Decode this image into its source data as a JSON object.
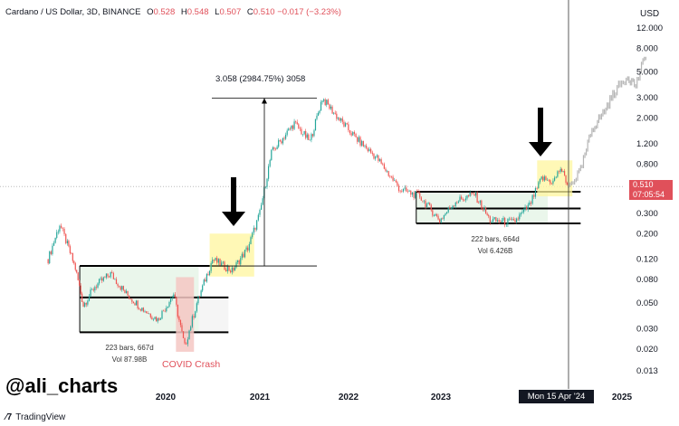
{
  "header": {
    "symbol": "Cardano / US Dollar, 3D, BINANCE",
    "open_label": "O",
    "open": "0.528",
    "high_label": "H",
    "high": "0.548",
    "low_label": "L",
    "low": "0.507",
    "close_label": "C",
    "close": "0.510",
    "change": "−0.017 (−3.23%)"
  },
  "currency": "USD",
  "watermark": "@ali_charts",
  "brand": "TradingView",
  "crosshair_date": "Mon 15 Apr '24",
  "last_price": {
    "value": "0.510",
    "countdown": "07:05:54"
  },
  "annotations": {
    "measure": "3.058 (2984.75%) 3058",
    "box1_bars": "223 bars, 667d",
    "box1_vol": "Vol 87.98B",
    "box2_bars": "222 bars, 664d",
    "box2_vol": "Vol 6.426B",
    "covid": "COVID Crash"
  },
  "colors": {
    "up": "#26a69a",
    "down": "#ef5350",
    "range_fill": "#e8f5e9",
    "highlight": "#fff59d",
    "covid_fill": "#f4c7c3",
    "projection": "#b5b5b5"
  },
  "chart_data": {
    "type": "candlestick",
    "y_scale": "log",
    "y_ticks": [
      12.0,
      8.0,
      5.0,
      3.0,
      2.0,
      1.2,
      0.8,
      0.5,
      0.3,
      0.2,
      0.12,
      0.08,
      0.05,
      0.03,
      0.02,
      0.013
    ],
    "y_tick_labels": [
      "12.000",
      "8.000",
      "5.000",
      "3.000",
      "2.000",
      "1.200",
      "0.800",
      "0.500",
      "0.300",
      "0.200",
      "0.120",
      "0.080",
      "0.050",
      "0.030",
      "0.020",
      "0.013"
    ],
    "x_ticks": [
      "2020",
      "2021",
      "2022",
      "2023",
      "2025"
    ],
    "price_path": [
      {
        "date": "2018-10-01",
        "close": 0.12
      },
      {
        "date": "2018-11-15",
        "close": 0.24
      },
      {
        "date": "2018-12-15",
        "close": 0.16
      },
      {
        "date": "2019-01-15",
        "close": 0.1
      },
      {
        "date": "2019-02-15",
        "close": 0.048
      },
      {
        "date": "2019-04-01",
        "close": 0.07
      },
      {
        "date": "2019-06-01",
        "close": 0.09
      },
      {
        "date": "2019-08-01",
        "close": 0.06
      },
      {
        "date": "2019-10-01",
        "close": 0.045
      },
      {
        "date": "2019-12-01",
        "close": 0.036
      },
      {
        "date": "2020-02-01",
        "close": 0.06
      },
      {
        "date": "2020-03-15",
        "close": 0.021
      },
      {
        "date": "2020-05-01",
        "close": 0.05
      },
      {
        "date": "2020-07-01",
        "close": 0.12
      },
      {
        "date": "2020-09-15",
        "close": 0.095
      },
      {
        "date": "2020-11-15",
        "close": 0.15
      },
      {
        "date": "2021-01-01",
        "close": 0.3
      },
      {
        "date": "2021-02-15",
        "close": 1.0
      },
      {
        "date": "2021-05-15",
        "close": 1.8
      },
      {
        "date": "2021-07-15",
        "close": 1.25
      },
      {
        "date": "2021-09-01",
        "close": 2.97
      },
      {
        "date": "2021-11-01",
        "close": 2.0
      },
      {
        "date": "2022-01-15",
        "close": 1.3
      },
      {
        "date": "2022-04-01",
        "close": 0.9
      },
      {
        "date": "2022-07-01",
        "close": 0.48
      },
      {
        "date": "2022-09-15",
        "close": 0.42
      },
      {
        "date": "2022-12-01",
        "close": 0.26
      },
      {
        "date": "2023-02-01",
        "close": 0.38
      },
      {
        "date": "2023-04-15",
        "close": 0.44
      },
      {
        "date": "2023-06-15",
        "close": 0.26
      },
      {
        "date": "2023-09-15",
        "close": 0.25
      },
      {
        "date": "2023-11-15",
        "close": 0.35
      },
      {
        "date": "2024-01-01",
        "close": 0.6
      },
      {
        "date": "2024-02-15",
        "close": 0.56
      },
      {
        "date": "2024-03-15",
        "close": 0.74
      },
      {
        "date": "2024-04-15",
        "close": 0.51
      }
    ],
    "projection_path": [
      {
        "date": "2024-04-15",
        "close": 0.51
      },
      {
        "date": "2024-06-01",
        "close": 0.7
      },
      {
        "date": "2024-07-15",
        "close": 1.6
      },
      {
        "date": "2024-09-01",
        "close": 2.3
      },
      {
        "date": "2024-10-15",
        "close": 3.5
      },
      {
        "date": "2024-12-01",
        "close": 4.6
      },
      {
        "date": "2025-01-01",
        "close": 3.8
      },
      {
        "date": "2025-02-15",
        "close": 7.8
      }
    ],
    "ranges": [
      {
        "from": "2019-02-01",
        "to": "2020-09-01",
        "top": 0.105,
        "mid": 0.056,
        "bottom": 0.028
      },
      {
        "from": "2022-09-01",
        "to": "2024-06-01",
        "top": 0.46,
        "mid": 0.33,
        "bottom": 0.245
      }
    ],
    "crosshair": {
      "date": "2024-04-15"
    }
  }
}
